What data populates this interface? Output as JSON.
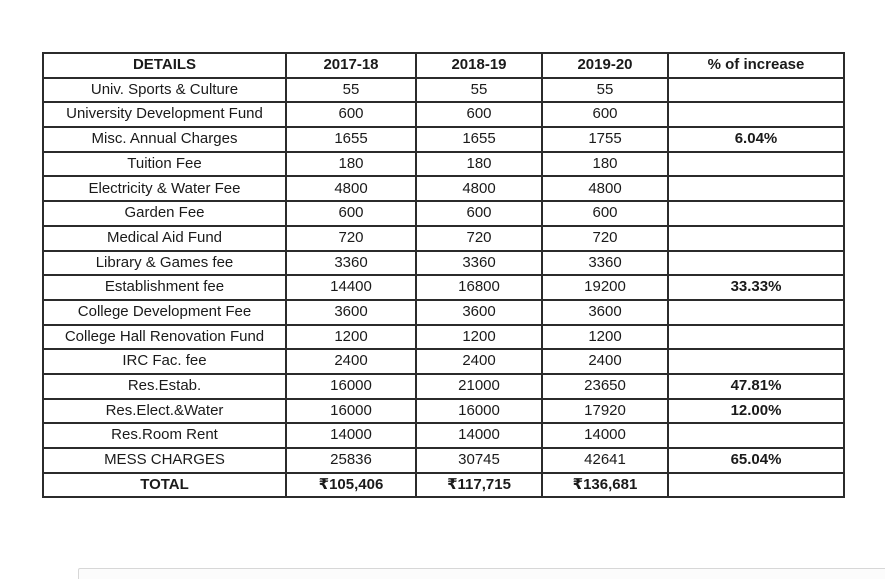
{
  "colors": {
    "table_border": "#2b2b2b",
    "text": "#1a1a1a",
    "background": "#ffffff",
    "cropped_panel_border": "#d7d7d7",
    "cropped_panel_fill": "#fcfcfc"
  },
  "table": {
    "columns": [
      "DETAILS",
      "2017-18",
      "2018-19",
      "2019-20",
      "% of increase"
    ],
    "rows": [
      {
        "label": "Univ. Sports & Culture",
        "values": [
          "55",
          "55",
          "55"
        ],
        "increase": ""
      },
      {
        "label": "University Development Fund",
        "values": [
          "600",
          "600",
          "600"
        ],
        "increase": ""
      },
      {
        "label": "Misc. Annual Charges",
        "values": [
          "1655",
          "1655",
          "1755"
        ],
        "increase": "6.04%"
      },
      {
        "label": "Tuition Fee",
        "values": [
          "180",
          "180",
          "180"
        ],
        "increase": ""
      },
      {
        "label": "Electricity & Water Fee",
        "values": [
          "4800",
          "4800",
          "4800"
        ],
        "increase": ""
      },
      {
        "label": "Garden Fee",
        "values": [
          "600",
          "600",
          "600"
        ],
        "increase": ""
      },
      {
        "label": "Medical Aid Fund",
        "values": [
          "720",
          "720",
          "720"
        ],
        "increase": ""
      },
      {
        "label": "Library & Games fee",
        "values": [
          "3360",
          "3360",
          "3360"
        ],
        "increase": ""
      },
      {
        "label": "Establishment fee",
        "values": [
          "14400",
          "16800",
          "19200"
        ],
        "increase": "33.33%"
      },
      {
        "label": "College Development Fee",
        "values": [
          "3600",
          "3600",
          "3600"
        ],
        "increase": ""
      },
      {
        "label": "College Hall Renovation Fund",
        "values": [
          "1200",
          "1200",
          "1200"
        ],
        "increase": ""
      },
      {
        "label": "IRC Fac. fee",
        "values": [
          "2400",
          "2400",
          "2400"
        ],
        "increase": ""
      },
      {
        "label": "Res.Estab.",
        "values": [
          "16000",
          "21000",
          "23650"
        ],
        "increase": "47.81%"
      },
      {
        "label": "Res.Elect.&Water",
        "values": [
          "16000",
          "16000",
          "17920"
        ],
        "increase": "12.00%"
      },
      {
        "label": "Res.Room Rent",
        "values": [
          "14000",
          "14000",
          "14000"
        ],
        "increase": ""
      },
      {
        "label": "MESS CHARGES",
        "values": [
          "25836",
          "30745",
          "42641"
        ],
        "increase": "65.04%"
      },
      {
        "label": "TOTAL",
        "values": [
          "₹105,406",
          "₹117,715",
          "₹136,681"
        ],
        "increase": "",
        "is_total": true
      }
    ]
  }
}
